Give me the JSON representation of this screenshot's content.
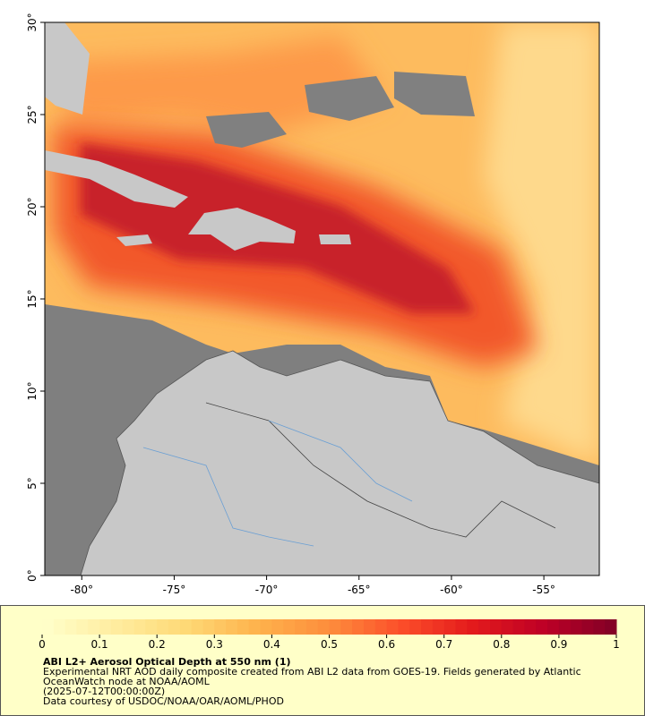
{
  "chart_data": {
    "type": "map",
    "title": "ABI L2+ Aerosol Optical Depth at 550 nm (1)",
    "description": [
      "Experimental NRT AOD daily composite created from ABI L2 data from GOES-19. Fields generated by Atlantic",
      "OceanWatch node at NOAA/AOML",
      "(2025-07-12T00:00:00Z)",
      "Data courtesy of USDOC/NOAA/OAR/AOML/PHOD"
    ],
    "xlim": [
      -82,
      -52
    ],
    "ylim": [
      0,
      30
    ],
    "xticks": [
      {
        "value": -80,
        "label": "-80°"
      },
      {
        "value": -75,
        "label": "-75°"
      },
      {
        "value": -70,
        "label": "-70°"
      },
      {
        "value": -65,
        "label": "-65°"
      },
      {
        "value": -60,
        "label": "-60°"
      },
      {
        "value": -55,
        "label": "-55°"
      }
    ],
    "yticks": [
      {
        "value": 0,
        "label": "0°"
      },
      {
        "value": 5,
        "label": "5°"
      },
      {
        "value": 10,
        "label": "10°"
      },
      {
        "value": 15,
        "label": "15°"
      },
      {
        "value": 20,
        "label": "20°"
      },
      {
        "value": 25,
        "label": "25°"
      },
      {
        "value": 30,
        "label": "30°"
      }
    ],
    "colorbar_lim": [
      0,
      1
    ],
    "colorbar_ticks": [
      0,
      0.1,
      0.2,
      0.3,
      0.4,
      0.5,
      0.6,
      0.7,
      0.8,
      0.9,
      1
    ],
    "colormap": [
      "#ffffcc",
      "#ffeda0",
      "#fed976",
      "#feb24c",
      "#fd8d3c",
      "#fc4e2a",
      "#e31a1c",
      "#bd0026",
      "#800026"
    ]
  }
}
